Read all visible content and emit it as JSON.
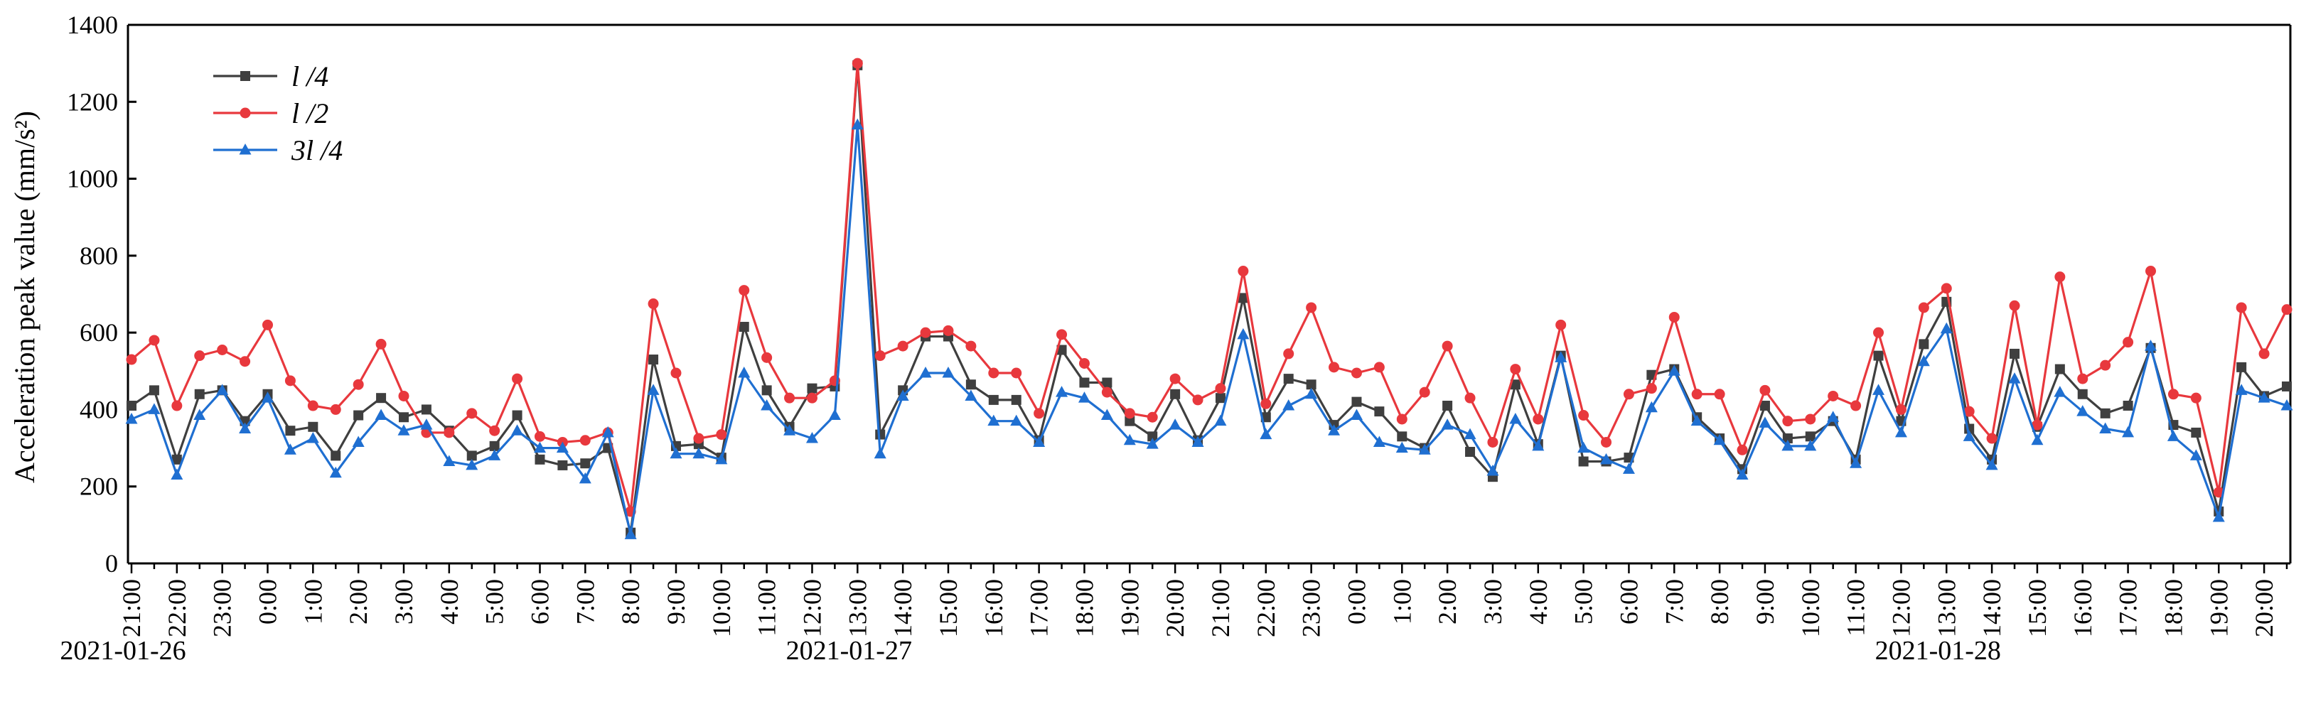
{
  "chart_data": {
    "type": "line",
    "title": "",
    "xlabel": "",
    "ylabel": "Acceleration peak value (mm/s²)",
    "ylim": [
      0,
      1400
    ],
    "yticks": [
      0,
      200,
      400,
      600,
      800,
      1000,
      1200,
      1400
    ],
    "grid": false,
    "legend_position": "top-left",
    "x_tick_labels": [
      "21:00",
      "22:00",
      "23:00",
      "0:00",
      "1:00",
      "2:00",
      "3:00",
      "4:00",
      "5:00",
      "6:00",
      "7:00",
      "8:00",
      "9:00",
      "10:00",
      "11:00",
      "12:00",
      "13:00",
      "14:00",
      "15:00",
      "16:00",
      "17:00",
      "18:00",
      "19:00",
      "20:00",
      "21:00",
      "22:00",
      "23:00",
      "0:00",
      "1:00",
      "2:00",
      "3:00",
      "4:00",
      "5:00",
      "6:00",
      "7:00",
      "8:00",
      "9:00",
      "10:00",
      "11:00",
      "12:00",
      "13:00",
      "14:00",
      "15:00",
      "16:00",
      "17:00",
      "18:00",
      "19:00",
      "20:00"
    ],
    "date_labels": [
      {
        "label": "2021-01-26",
        "tick_index": 0
      },
      {
        "label": "2021-01-27",
        "tick_index": 16
      },
      {
        "label": "2021-01-28",
        "tick_index": 40
      }
    ],
    "series": [
      {
        "name": "l /4",
        "color": "#3f3f3f",
        "marker": "square",
        "values": [
          410,
          450,
          270,
          440,
          450,
          370,
          440,
          345,
          355,
          280,
          385,
          430,
          380,
          400,
          345,
          280,
          305,
          385,
          270,
          255,
          260,
          300,
          80,
          530,
          305,
          310,
          275,
          615,
          450,
          355,
          455,
          460,
          1295,
          335,
          450,
          590,
          590,
          465,
          425,
          425,
          320,
          555,
          470,
          470,
          370,
          330,
          440,
          320,
          430,
          690,
          380,
          480,
          465,
          360,
          420,
          395,
          330,
          300,
          410,
          290,
          225,
          465,
          310,
          540,
          265,
          265,
          275,
          490,
          505,
          380,
          325,
          245,
          410,
          325,
          330,
          370,
          270,
          540,
          370,
          570,
          680,
          350,
          270,
          545,
          355,
          505,
          440,
          390,
          410,
          560,
          360,
          340,
          135,
          510,
          435,
          460
        ]
      },
      {
        "name": "l /2",
        "color": "#e8383d",
        "marker": "circle",
        "values": [
          530,
          580,
          410,
          540,
          555,
          525,
          620,
          475,
          410,
          400,
          465,
          570,
          435,
          340,
          340,
          390,
          345,
          480,
          330,
          315,
          320,
          340,
          135,
          675,
          495,
          325,
          335,
          710,
          535,
          430,
          430,
          475,
          1300,
          540,
          565,
          600,
          605,
          565,
          495,
          495,
          390,
          595,
          520,
          445,
          390,
          380,
          480,
          425,
          455,
          760,
          415,
          545,
          665,
          510,
          495,
          510,
          375,
          445,
          565,
          430,
          315,
          505,
          375,
          620,
          385,
          315,
          440,
          455,
          640,
          440,
          440,
          295,
          450,
          370,
          375,
          435,
          410,
          600,
          400,
          665,
          715,
          395,
          325,
          670,
          360,
          745,
          480,
          515,
          575,
          760,
          440,
          430,
          185,
          665,
          545,
          660
        ]
      },
      {
        "name": "3l /4",
        "color": "#1f6fd1",
        "marker": "triangle",
        "values": [
          375,
          400,
          230,
          385,
          450,
          350,
          430,
          295,
          325,
          235,
          315,
          385,
          345,
          360,
          265,
          255,
          280,
          345,
          300,
          300,
          220,
          340,
          75,
          450,
          285,
          285,
          270,
          495,
          410,
          345,
          325,
          385,
          1140,
          285,
          435,
          495,
          495,
          435,
          370,
          370,
          315,
          445,
          430,
          385,
          320,
          310,
          360,
          315,
          370,
          595,
          335,
          410,
          440,
          345,
          385,
          315,
          300,
          295,
          360,
          335,
          240,
          375,
          305,
          535,
          300,
          270,
          245,
          405,
          500,
          370,
          320,
          230,
          365,
          305,
          305,
          380,
          260,
          450,
          340,
          525,
          610,
          330,
          255,
          480,
          320,
          445,
          395,
          350,
          340,
          565,
          330,
          280,
          120,
          450,
          430,
          410
        ]
      }
    ]
  }
}
